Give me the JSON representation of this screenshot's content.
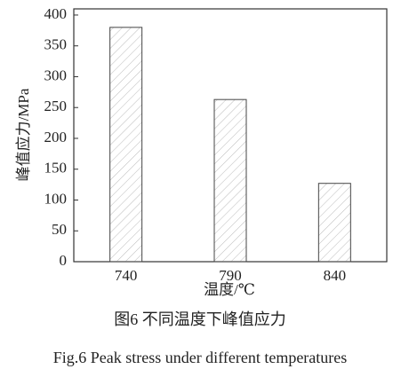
{
  "chart_data": {
    "type": "bar",
    "x_label": "温度/℃",
    "y_label": "峰值应力/MPa",
    "caption": "图6 不同温度下峰值应力",
    "caption_en": "Fig.6 Peak stress under different temperatures",
    "categories": [
      "740",
      "790",
      "840"
    ],
    "values": [
      380,
      263,
      127
    ],
    "color": "#444444",
    "ylim": [
      0,
      410
    ],
    "yticks": [
      0,
      50,
      100,
      150,
      200,
      250,
      300,
      350,
      400
    ],
    "grid": false
  }
}
